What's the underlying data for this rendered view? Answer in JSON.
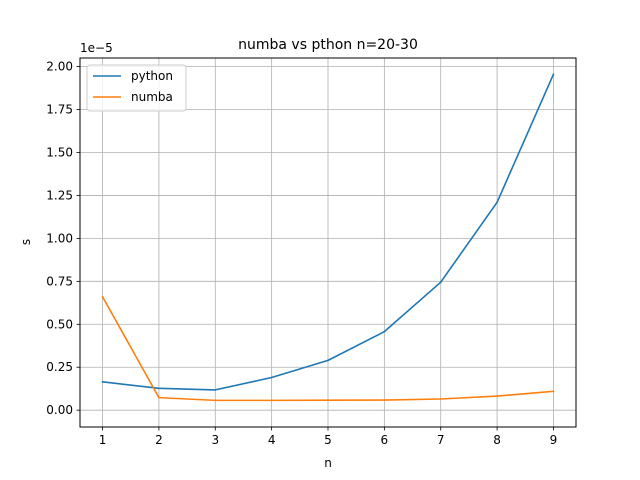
{
  "chart_data": {
    "type": "line",
    "title": "numba vs pthon n=20-30",
    "xlabel": "n",
    "ylabel": "s",
    "y_offset_label": "1e−5",
    "x": [
      1,
      2,
      3,
      4,
      5,
      6,
      7,
      8,
      9
    ],
    "xlim": [
      0.6,
      9.4
    ],
    "ylim": [
      -0.098,
      2.05
    ],
    "x_ticks": [
      1,
      2,
      3,
      4,
      5,
      6,
      7,
      8,
      9
    ],
    "x_tick_labels": [
      "1",
      "2",
      "3",
      "4",
      "5",
      "6",
      "7",
      "8",
      "9"
    ],
    "y_ticks": [
      0,
      0.25,
      0.5,
      0.75,
      1.0,
      1.25,
      1.5,
      1.75,
      2.0
    ],
    "y_tick_labels": [
      "0.00",
      "0.25",
      "0.50",
      "0.75",
      "1.00",
      "1.25",
      "1.50",
      "1.75",
      "2.00"
    ],
    "grid": true,
    "legend_position": "top-left",
    "series": [
      {
        "name": "python",
        "color": "#1f77b4",
        "values": [
          0.165,
          0.127,
          0.118,
          0.19,
          0.29,
          0.457,
          0.745,
          1.21,
          1.955
        ]
      },
      {
        "name": "numba",
        "color": "#ff7f0e",
        "values": [
          0.66,
          0.073,
          0.057,
          0.057,
          0.058,
          0.059,
          0.065,
          0.082,
          0.11
        ]
      }
    ]
  }
}
